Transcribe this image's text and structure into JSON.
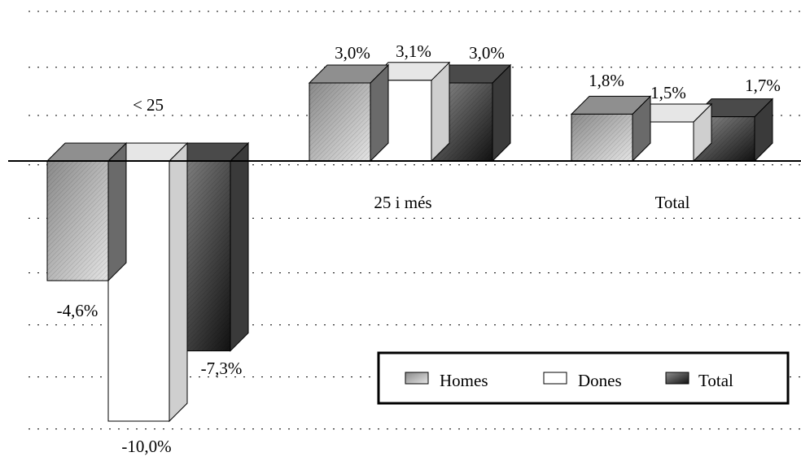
{
  "chart_data": {
    "type": "bar",
    "categories": [
      "< 25",
      "25 i més",
      "Total"
    ],
    "series": [
      {
        "name": "Homes",
        "values": [
          -4.6,
          3.0,
          1.8
        ],
        "value_labels": [
          "-4,6%",
          "3,0%",
          "1,8%"
        ]
      },
      {
        "name": "Dones",
        "values": [
          -10.0,
          3.1,
          1.5
        ],
        "value_labels": [
          "-10,0%",
          "3,1%",
          "1,5%"
        ]
      },
      {
        "name": "Total",
        "values": [
          -7.3,
          3.0,
          1.7
        ],
        "value_labels": [
          "-7,3%",
          "3,0%",
          "1,7%"
        ]
      }
    ],
    "ylim": [
      -10.5,
      6
    ],
    "grid": true,
    "legend_position": "bottom-right",
    "colors": {
      "Homes": {
        "front": "#b9b9b9",
        "top": "#8f8f8f",
        "side": "#6a6a6a"
      },
      "Dones": {
        "front": "#ffffff",
        "top": "#e6e6e6",
        "side": "#cfcfcf"
      },
      "Total": {
        "front": "#6a6a6a",
        "top": "#4a4a4a",
        "side": "#3a3a3a"
      }
    }
  }
}
